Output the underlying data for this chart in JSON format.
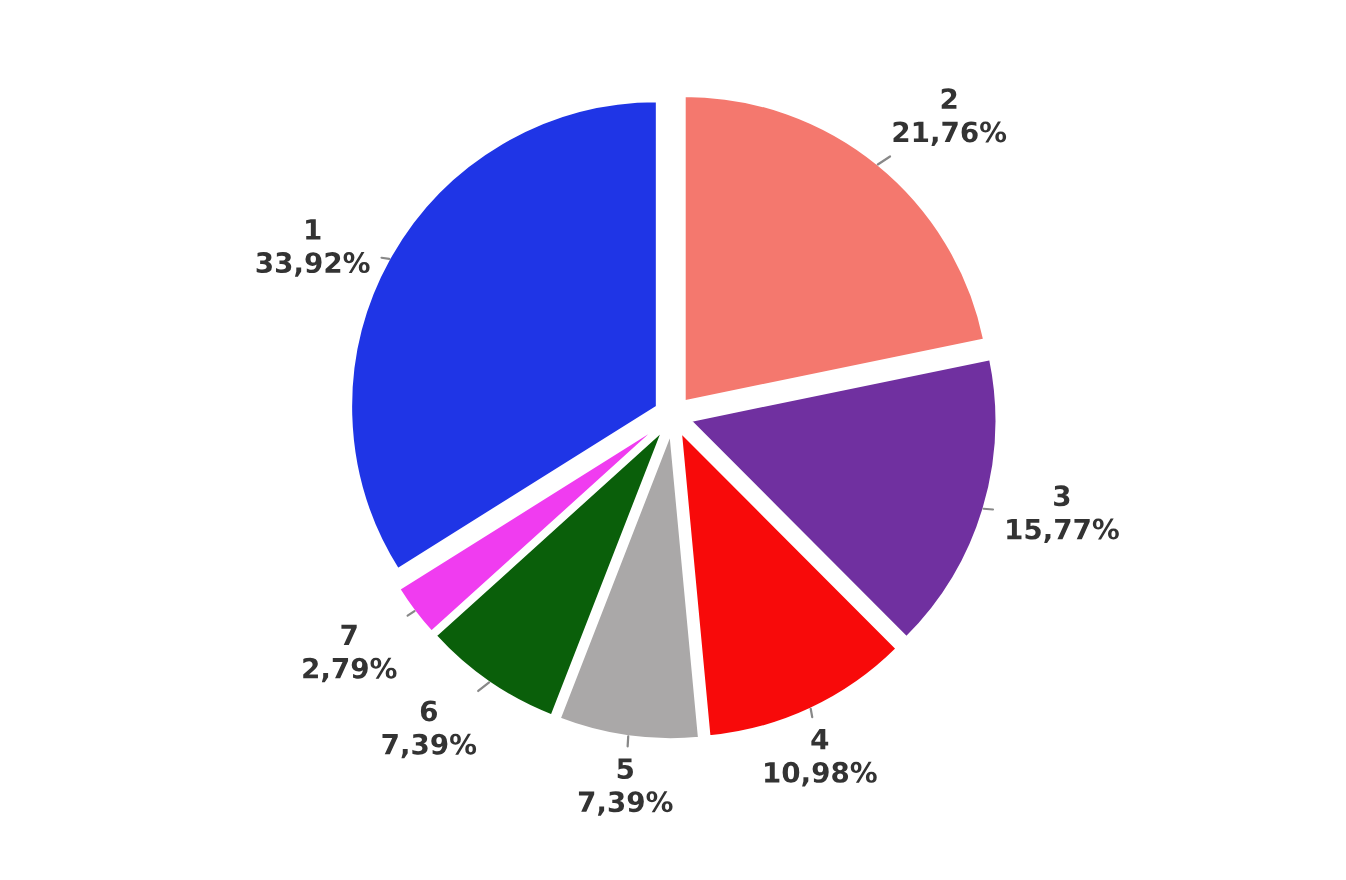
{
  "chart_data": {
    "type": "pie",
    "categories": [
      "1",
      "2",
      "3",
      "4",
      "5",
      "6",
      "7"
    ],
    "values": [
      33.92,
      21.76,
      15.77,
      10.98,
      7.39,
      7.39,
      2.79
    ],
    "value_labels": [
      "33,92%",
      "21,76%",
      "15,77%",
      "10,98%",
      "7,39%",
      "7,39%",
      "2,79%"
    ],
    "colors": [
      "#1f35e6",
      "#f4786e",
      "#7030a0",
      "#f80a0a",
      "#aaa8a8",
      "#0a5f0a",
      "#f03cf0"
    ]
  }
}
